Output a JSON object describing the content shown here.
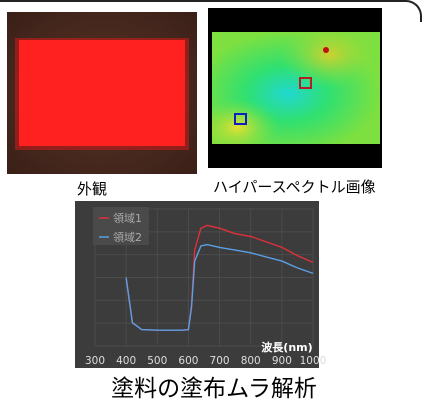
{
  "captions": {
    "appearance": "外観",
    "hyperspectral": "ハイパースペクトル画像"
  },
  "title": "塗料の塗布ムラ解析",
  "chart_data": {
    "type": "line",
    "xlabel": "波長(nm)",
    "ylabel": "",
    "x": [
      300,
      400,
      420,
      450,
      500,
      550,
      580,
      600,
      610,
      620,
      640,
      660,
      700,
      750,
      800,
      850,
      900,
      950,
      1000
    ],
    "xticks": [
      300,
      400,
      500,
      600,
      700,
      800,
      900,
      1000
    ],
    "xlim": [
      300,
      1000
    ],
    "ylim": [
      0,
      1
    ],
    "legend_position": "top-left",
    "grid": true,
    "series": [
      {
        "name": "領域1",
        "color": "#e0303a",
        "values": [
          null,
          0.5,
          0.17,
          0.12,
          0.115,
          0.115,
          0.115,
          0.12,
          0.3,
          0.7,
          0.86,
          0.88,
          0.86,
          0.82,
          0.8,
          0.76,
          0.72,
          0.66,
          0.61
        ]
      },
      {
        "name": "領域2",
        "color": "#5aa0e6",
        "values": [
          null,
          0.5,
          0.17,
          0.12,
          0.115,
          0.115,
          0.115,
          0.12,
          0.28,
          0.62,
          0.73,
          0.74,
          0.72,
          0.7,
          0.68,
          0.65,
          0.62,
          0.57,
          0.53
        ]
      }
    ]
  }
}
